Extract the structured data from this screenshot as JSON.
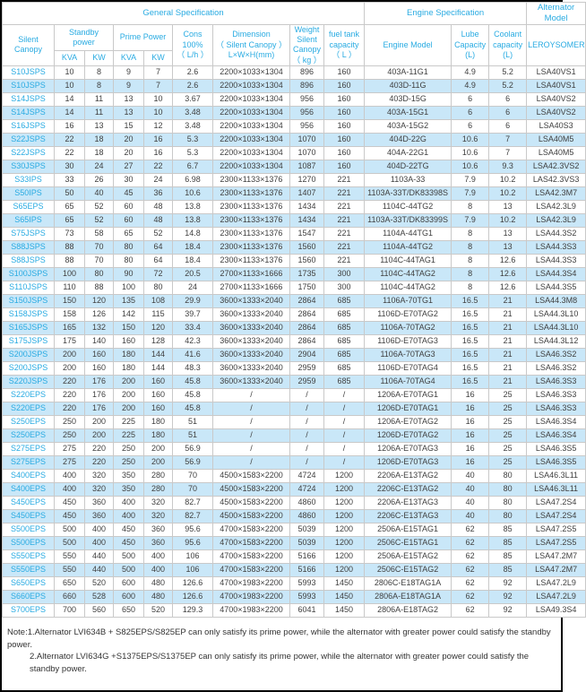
{
  "table": {
    "groups": {
      "general": "General Specification",
      "engine": "Engine Specification",
      "alternator": "Alternator Model"
    },
    "headers": {
      "silent_canopy": "Silent\nCanopy",
      "standby_power": "Standby\npower",
      "prime_power": "Prime Power",
      "kva1": "KVA",
      "kw1": "KW",
      "kva2": "KVA",
      "kw2": "KW",
      "cons": "Cons\n100%\n（ L/h ）",
      "dimension": "Dimension\n（ Silent Canopy ）\nL×W×H(mm)",
      "weight": "Weight\nSilent\nCanopy\n（ kg ）",
      "fuel_tank": "fuel tank\ncapacity\n（ L ）",
      "engine_model": "Engine Model",
      "lube": "Lube\nCapacity\n(L)",
      "coolant": "Coolant\ncapacity\n(L)",
      "leroysomer": "LEROYSOMER"
    },
    "rows": [
      [
        "S10JSPS",
        "10",
        "8",
        "9",
        "7",
        "2.6",
        "2200×1033×1304",
        "896",
        "160",
        "403A-11G1",
        "4.9",
        "5.2",
        "LSA40VS1"
      ],
      [
        "S10JSPS",
        "10",
        "8",
        "9",
        "7",
        "2.6",
        "2200×1033×1304",
        "896",
        "160",
        "403D-11G",
        "4.9",
        "5.2",
        "LSA40VS1"
      ],
      [
        "S14JSPS",
        "14",
        "11",
        "13",
        "10",
        "3.67",
        "2200×1033×1304",
        "956",
        "160",
        "403D-15G",
        "6",
        "6",
        "LSA40VS2"
      ],
      [
        "S14JSPS",
        "14",
        "11",
        "13",
        "10",
        "3.48",
        "2200×1033×1304",
        "956",
        "160",
        "403A-15G1",
        "6",
        "6",
        "LSA40VS2"
      ],
      [
        "S16JSPS",
        "16",
        "13",
        "15",
        "12",
        "3.48",
        "2200×1033×1304",
        "956",
        "160",
        "403A-15G2",
        "6",
        "6",
        "LSA40S3"
      ],
      [
        "S22JSPS",
        "22",
        "18",
        "20",
        "16",
        "5.3",
        "2200×1033×1304",
        "1070",
        "160",
        "404D-22G",
        "10.6",
        "7",
        "LSA40M5"
      ],
      [
        "S22JSPS",
        "22",
        "18",
        "20",
        "16",
        "5.3",
        "2200×1033×1304",
        "1070",
        "160",
        "404A-22G1",
        "10.6",
        "7",
        "LSA40M5"
      ],
      [
        "S30JSPS",
        "30",
        "24",
        "27",
        "22",
        "6.7",
        "2200×1033×1304",
        "1087",
        "160",
        "404D-22TG",
        "10.6",
        "9.3",
        "LSA42.3VS2"
      ],
      [
        "S33IPS",
        "33",
        "26",
        "30",
        "24",
        "6.98",
        "2300×1133×1376",
        "1270",
        "221",
        "1103A-33",
        "7.9",
        "10.2",
        "LAS42.3VS3"
      ],
      [
        "S50IPS",
        "50",
        "40",
        "45",
        "36",
        "10.6",
        "2300×1133×1376",
        "1407",
        "221",
        "1103A-33T/DK83398S",
        "7.9",
        "10.2",
        "LSA42.3M7"
      ],
      [
        "S65EPS",
        "65",
        "52",
        "60",
        "48",
        "13.8",
        "2300×1133×1376",
        "1434",
        "221",
        "1104C-44TG2",
        "8",
        "13",
        "LSA42.3L9"
      ],
      [
        "S65IPS",
        "65",
        "52",
        "60",
        "48",
        "13.8",
        "2300×1133×1376",
        "1434",
        "221",
        "1103A-33T/DK83399S",
        "7.9",
        "10.2",
        "LSA42.3L9"
      ],
      [
        "S75JSPS",
        "73",
        "58",
        "65",
        "52",
        "14.8",
        "2300×1133×1376",
        "1547",
        "221",
        "1104A-44TG1",
        "8",
        "13",
        "LSA44.3S2"
      ],
      [
        "S88JSPS",
        "88",
        "70",
        "80",
        "64",
        "18.4",
        "2300×1133×1376",
        "1560",
        "221",
        "1104A-44TG2",
        "8",
        "13",
        "LSA44.3S3"
      ],
      [
        "S88JSPS",
        "88",
        "70",
        "80",
        "64",
        "18.4",
        "2300×1133×1376",
        "1560",
        "221",
        "1104C-44TAG1",
        "8",
        "12.6",
        "LSA44.3S3"
      ],
      [
        "S100JSPS",
        "100",
        "80",
        "90",
        "72",
        "20.5",
        "2700×1133×1666",
        "1735",
        "300",
        "1104C-44TAG2",
        "8",
        "12.6",
        "LSA44.3S4"
      ],
      [
        "S110JSPS",
        "110",
        "88",
        "100",
        "80",
        "24",
        "2700×1133×1666",
        "1750",
        "300",
        "1104C-44TAG2",
        "8",
        "12.6",
        "LSA44.3S5"
      ],
      [
        "S150JSPS",
        "150",
        "120",
        "135",
        "108",
        "29.9",
        "3600×1333×2040",
        "2864",
        "685",
        "1106A-70TG1",
        "16.5",
        "21",
        "LSA44.3M8"
      ],
      [
        "S158JSPS",
        "158",
        "126",
        "142",
        "115",
        "39.7",
        "3600×1333×2040",
        "2864",
        "685",
        "1106D-E70TAG2",
        "16.5",
        "21",
        "LSA44.3L10"
      ],
      [
        "S165JSPS",
        "165",
        "132",
        "150",
        "120",
        "33.4",
        "3600×1333×2040",
        "2864",
        "685",
        "1106A-70TAG2",
        "16.5",
        "21",
        "LSA44.3L10"
      ],
      [
        "S175JSPS",
        "175",
        "140",
        "160",
        "128",
        "42.3",
        "3600×1333×2040",
        "2864",
        "685",
        "1106D-E70TAG3",
        "16.5",
        "21",
        "LSA44.3L12"
      ],
      [
        "S200JSPS",
        "200",
        "160",
        "180",
        "144",
        "41.6",
        "3600×1333×2040",
        "2904",
        "685",
        "1106A-70TAG3",
        "16.5",
        "21",
        "LSA46.3S2"
      ],
      [
        "S200JSPS",
        "200",
        "160",
        "180",
        "144",
        "48.3",
        "3600×1333×2040",
        "2959",
        "685",
        "1106D-E70TAG4",
        "16.5",
        "21",
        "LSA46.3S2"
      ],
      [
        "S220JSPS",
        "220",
        "176",
        "200",
        "160",
        "45.8",
        "3600×1333×2040",
        "2959",
        "685",
        "1106A-70TAG4",
        "16.5",
        "21",
        "LSA46.3S3"
      ],
      [
        "S220EPS",
        "220",
        "176",
        "200",
        "160",
        "45.8",
        "/",
        "/",
        "/",
        "1206A-E70TAG1",
        "16",
        "25",
        "LSA46.3S3"
      ],
      [
        "S220EPS",
        "220",
        "176",
        "200",
        "160",
        "45.8",
        "/",
        "/",
        "/",
        "1206D-E70TAG1",
        "16",
        "25",
        "LSA46.3S3"
      ],
      [
        "S250EPS",
        "250",
        "200",
        "225",
        "180",
        "51",
        "/",
        "/",
        "/",
        "1206A-E70TAG2",
        "16",
        "25",
        "LSA46.3S4"
      ],
      [
        "S250EPS",
        "250",
        "200",
        "225",
        "180",
        "51",
        "/",
        "/",
        "/",
        "1206D-E70TAG2",
        "16",
        "25",
        "LSA46.3S4"
      ],
      [
        "S275EPS",
        "275",
        "220",
        "250",
        "200",
        "56.9",
        "/",
        "/",
        "/",
        "1206A-E70TAG3",
        "16",
        "25",
        "LSA46.3S5"
      ],
      [
        "S275EPS",
        "275",
        "220",
        "250",
        "200",
        "56.9",
        "/",
        "/",
        "/",
        "1206D-E70TAG3",
        "16",
        "25",
        "LSA46.3S5"
      ],
      [
        "S400EPS",
        "400",
        "320",
        "350",
        "280",
        "70",
        "4500×1583×2200",
        "4724",
        "1200",
        "2206A-E13TAG2",
        "40",
        "80",
        "LSA46.3L11"
      ],
      [
        "S400EPS",
        "400",
        "320",
        "350",
        "280",
        "70",
        "4500×1583×2200",
        "4724",
        "1200",
        "2206C-E13TAG2",
        "40",
        "80",
        "LSA46.3L11"
      ],
      [
        "S450EPS",
        "450",
        "360",
        "400",
        "320",
        "82.7",
        "4500×1583×2200",
        "4860",
        "1200",
        "2206A-E13TAG3",
        "40",
        "80",
        "LSA47.2S4"
      ],
      [
        "S450EPS",
        "450",
        "360",
        "400",
        "320",
        "82.7",
        "4500×1583×2200",
        "4860",
        "1200",
        "2206C-E13TAG3",
        "40",
        "80",
        "LSA47.2S4"
      ],
      [
        "S500EPS",
        "500",
        "400",
        "450",
        "360",
        "95.6",
        "4700×1583×2200",
        "5039",
        "1200",
        "2506A-E15TAG1",
        "62",
        "85",
        "LSA47.2S5"
      ],
      [
        "S500EPS",
        "500",
        "400",
        "450",
        "360",
        "95.6",
        "4700×1583×2200",
        "5039",
        "1200",
        "2506C-E15TAG1",
        "62",
        "85",
        "LSA47.2S5"
      ],
      [
        "S550EPS",
        "550",
        "440",
        "500",
        "400",
        "106",
        "4700×1583×2200",
        "5166",
        "1200",
        "2506A-E15TAG2",
        "62",
        "85",
        "LSA47.2M7"
      ],
      [
        "S550EPS",
        "550",
        "440",
        "500",
        "400",
        "106",
        "4700×1583×2200",
        "5166",
        "1200",
        "2506C-E15TAG2",
        "62",
        "85",
        "LSA47.2M7"
      ],
      [
        "S650EPS",
        "650",
        "520",
        "600",
        "480",
        "126.6",
        "4700×1983×2200",
        "5993",
        "1450",
        "2806C-E18TAG1A",
        "62",
        "92",
        "LSA47.2L9"
      ],
      [
        "S660EPS",
        "660",
        "528",
        "600",
        "480",
        "126.6",
        "4700×1983×2200",
        "5993",
        "1450",
        "2806A-E18TAG1A",
        "62",
        "92",
        "LSA47.2L9"
      ],
      [
        "S700EPS",
        "700",
        "560",
        "650",
        "520",
        "129.3",
        "4700×1983×2200",
        "6041",
        "1450",
        "2806A-E18TAG2",
        "62",
        "92",
        "LSA49.3S4"
      ]
    ]
  },
  "notes": {
    "line1": "Note:1.Alternator LVI634B + S825EPS/S825EP can only satisfy its prime power, while the alternator with greater power could satisfy the standby power.",
    "line2": "2.Alternator LVI634G +S1375EPS/S1375EP can only satisfy its prime power, while the alternator with greater power could satisfy the standby power."
  },
  "colors": {
    "accent": "#29abe2",
    "row_alt_background": "#c9e7f8",
    "border": "#c9c9c9",
    "text": "#404040",
    "frame": "#000000"
  }
}
